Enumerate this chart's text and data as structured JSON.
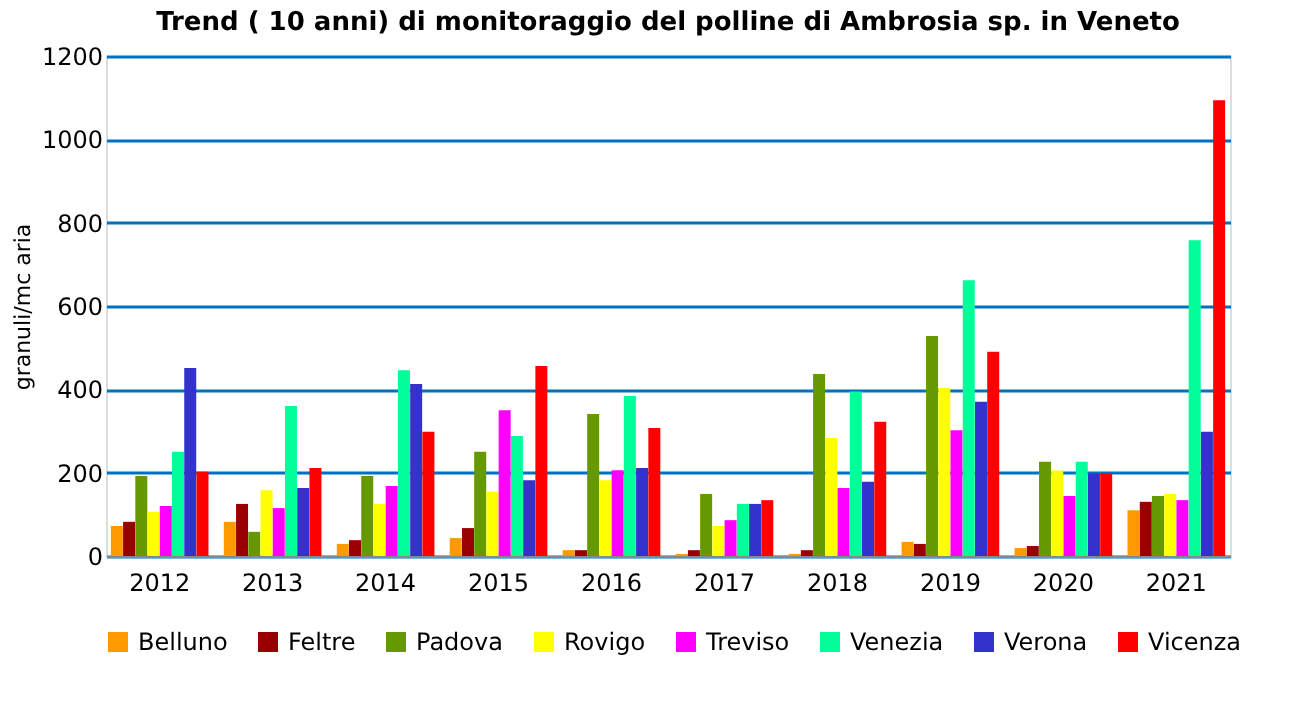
{
  "chart_data": {
    "type": "bar",
    "title": "Trend ( 10 anni) di monitoraggio del polline di Ambrosia sp. in Veneto",
    "ylabel": "granuli/mc aria",
    "categories": [
      "2012",
      "2013",
      "2014",
      "2015",
      "2016",
      "2017",
      "2018",
      "2019",
      "2020",
      "2021"
    ],
    "series": [
      {
        "name": "Belluno",
        "color": "#ff9900",
        "values": [
          72,
          82,
          29,
          43,
          14,
          5,
          5,
          34,
          19,
          110
        ]
      },
      {
        "name": "Feltre",
        "color": "#990000",
        "values": [
          82,
          125,
          38,
          67,
          14,
          14,
          14,
          29,
          24,
          130
        ]
      },
      {
        "name": "Padova",
        "color": "#669900",
        "values": [
          192,
          58,
          192,
          250,
          341,
          149,
          437,
          528,
          226,
          144
        ]
      },
      {
        "name": "Rovigo",
        "color": "#ffff00",
        "values": [
          106,
          158,
          125,
          154,
          182,
          72,
          283,
          403,
          205,
          149
        ]
      },
      {
        "name": "Treviso",
        "color": "#ff00ff",
        "values": [
          120,
          115,
          168,
          350,
          206,
          86,
          163,
          302,
          144,
          134
        ]
      },
      {
        "name": "Venezia",
        "color": "#00ff99",
        "values": [
          250,
          360,
          446,
          288,
          384,
          125,
          395,
          662,
          226,
          758
        ]
      },
      {
        "name": "Verona",
        "color": "#3333cc",
        "values": [
          451,
          163,
          413,
          182,
          211,
          125,
          178,
          370,
          198,
          298
        ]
      },
      {
        "name": "Vicenza",
        "color": "#ff0000",
        "values": [
          202,
          211,
          298,
          456,
          307,
          134,
          322,
          490,
          198,
          1094
        ]
      }
    ],
    "ylim": [
      0,
      1200
    ],
    "yticks": [
      0,
      200,
      400,
      600,
      800,
      1000,
      1200
    ],
    "grid": "y",
    "legend": "bottom"
  }
}
